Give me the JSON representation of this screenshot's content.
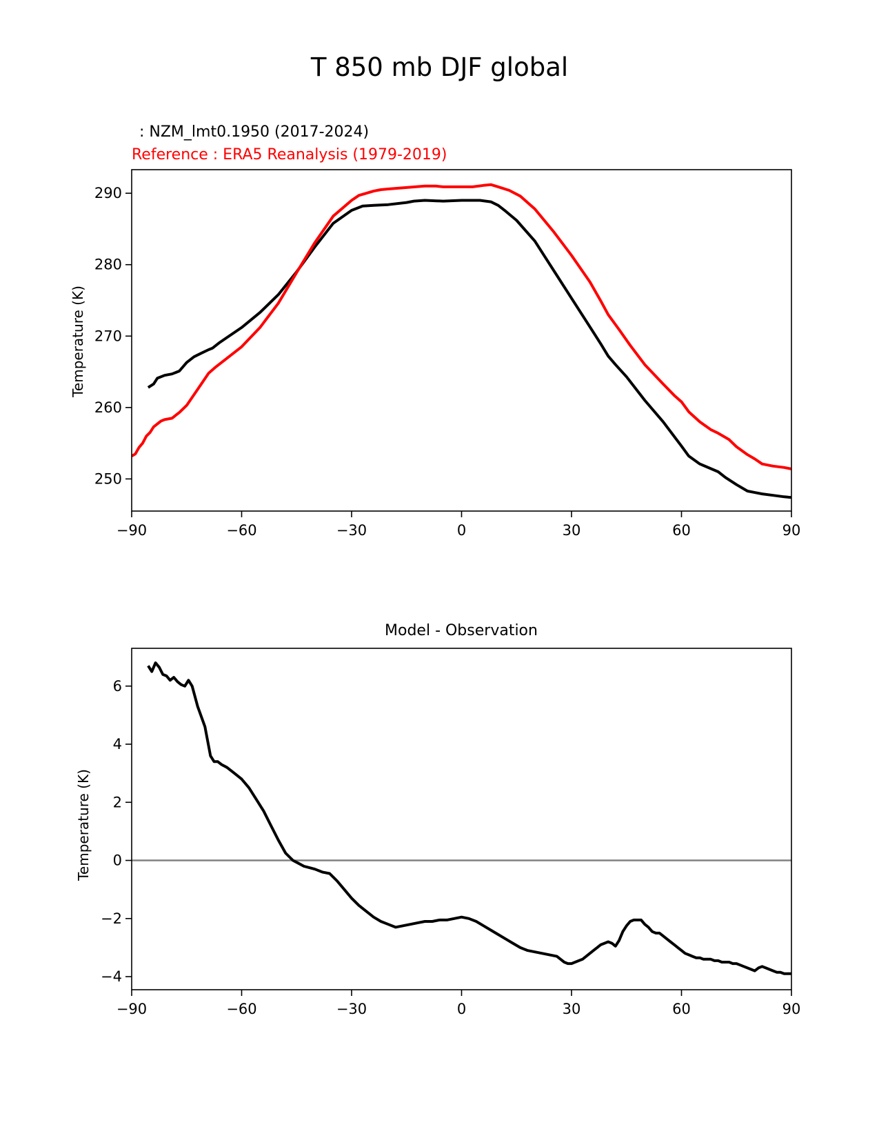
{
  "figure_title": "T 850 mb DJF global",
  "colors": {
    "model": "#000000",
    "reference": "#ff0000",
    "zero_line": "#808080",
    "axes": "#000000"
  },
  "chart_data": [
    {
      "type": "line",
      "model_label": " : NZM_lmt0.1950 (2017-2024)",
      "reference_label": "Reference : ERA5 Reanalysis (1979-2019)",
      "xlabel": "",
      "ylabel": "Temperature (K)",
      "xlim": [
        -90,
        90
      ],
      "ylim": [
        245.5,
        293.3
      ],
      "xticks": [
        -90,
        -60,
        -30,
        0,
        30,
        60,
        90
      ],
      "xtick_labels": [
        "−90",
        "−60",
        "−30",
        "0",
        "30",
        "60",
        "90"
      ],
      "yticks": [
        250,
        260,
        270,
        280,
        290
      ],
      "ytick_labels": [
        "250",
        "260",
        "270",
        "280",
        "290"
      ],
      "series": [
        {
          "name": "NZM_lmt0.1950 (2017-2024)",
          "color": "#000000",
          "x": [
            -85.5,
            -84,
            -83,
            -81,
            -79,
            -77,
            -75,
            -73,
            -71,
            -69,
            -68,
            -66,
            -64,
            -60,
            -55,
            -50,
            -45,
            -40,
            -35,
            -30,
            -27,
            -24,
            -20,
            -15,
            -13,
            -10,
            -5,
            0,
            5,
            8,
            10,
            12,
            15,
            20,
            25,
            30,
            35,
            38,
            40,
            42,
            45,
            50,
            55,
            60,
            62,
            65,
            70,
            72,
            75,
            78,
            80,
            82,
            85,
            88,
            90
          ],
          "y": [
            262.8,
            263.3,
            264.1,
            264.5,
            264.7,
            265.1,
            266.3,
            267.1,
            267.6,
            268.1,
            268.3,
            269.1,
            269.8,
            271.2,
            273.3,
            275.8,
            279.0,
            282.5,
            285.8,
            287.6,
            288.2,
            288.3,
            288.4,
            288.7,
            288.9,
            289.0,
            288.9,
            289.0,
            289.0,
            288.8,
            288.3,
            287.5,
            286.2,
            283.3,
            279.3,
            275.3,
            271.3,
            268.9,
            267.2,
            266.0,
            264.3,
            261.0,
            258.0,
            254.6,
            253.2,
            252.1,
            251.0,
            250.2,
            249.2,
            248.3,
            248.1,
            247.9,
            247.7,
            247.5,
            247.4
          ]
        },
        {
          "name": "ERA5 Reanalysis (1979-2019)",
          "color": "#ff0000",
          "x": [
            -90,
            -89,
            -88,
            -87,
            -86,
            -85,
            -84,
            -82,
            -81,
            -79,
            -78,
            -77,
            -76,
            -75,
            -73,
            -71,
            -69,
            -67,
            -66,
            -64,
            -62,
            -60,
            -55,
            -50,
            -45,
            -40,
            -35,
            -30,
            -28,
            -26,
            -24,
            -22,
            -20,
            -15,
            -10,
            -7,
            -5,
            0,
            3,
            6,
            8,
            10,
            13,
            16,
            20,
            25,
            30,
            35,
            38,
            40,
            43,
            46,
            50,
            55,
            58,
            60,
            62,
            65,
            68,
            70,
            73,
            75,
            78,
            80,
            82,
            85,
            88,
            90
          ],
          "y": [
            253.2,
            253.5,
            254.4,
            255.0,
            256.0,
            256.5,
            257.3,
            258.1,
            258.3,
            258.5,
            258.9,
            259.3,
            259.8,
            260.3,
            261.8,
            263.3,
            264.8,
            265.7,
            266.1,
            266.9,
            267.7,
            268.5,
            271.2,
            274.6,
            278.9,
            283.1,
            286.8,
            289.0,
            289.7,
            290.0,
            290.3,
            290.5,
            290.6,
            290.8,
            291.0,
            291.0,
            290.9,
            290.9,
            290.9,
            291.1,
            291.2,
            290.9,
            290.4,
            289.6,
            287.8,
            284.7,
            281.3,
            277.6,
            274.9,
            273.0,
            270.9,
            268.7,
            266.0,
            263.3,
            261.7,
            260.8,
            259.4,
            258.0,
            256.9,
            256.4,
            255.5,
            254.5,
            253.4,
            252.8,
            252.1,
            251.8,
            251.6,
            251.4
          ]
        }
      ]
    },
    {
      "type": "line",
      "title": "Model - Observation",
      "xlabel": "",
      "ylabel": "Temperature (K)",
      "xlim": [
        -90,
        90
      ],
      "ylim": [
        -4.45,
        7.3
      ],
      "xticks": [
        -90,
        -60,
        -30,
        0,
        30,
        60,
        90
      ],
      "xtick_labels": [
        "−90",
        "−60",
        "−30",
        "0",
        "30",
        "60",
        "90"
      ],
      "yticks": [
        -4,
        -2,
        0,
        2,
        4,
        6
      ],
      "ytick_labels": [
        "−4",
        "−2",
        "0",
        "2",
        "4",
        "6"
      ],
      "hline": 0,
      "series": [
        {
          "name": "Model - Observation",
          "color": "#000000",
          "x": [
            -85.5,
            -84.5,
            -83.5,
            -82.5,
            -81.5,
            -80.5,
            -79.5,
            -78.5,
            -77.5,
            -76.5,
            -75.5,
            -74.5,
            -73.5,
            -72,
            -70,
            -68.5,
            -67.5,
            -66.5,
            -65.5,
            -64,
            -62,
            -60,
            -58,
            -56,
            -54,
            -52,
            -50,
            -48,
            -46,
            -44.5,
            -43,
            -41.5,
            -40,
            -38,
            -36,
            -34,
            -32,
            -30,
            -28,
            -26,
            -24,
            -22,
            -20,
            -18,
            -16,
            -14,
            -12,
            -10,
            -8,
            -6,
            -4,
            -2,
            0,
            2,
            4,
            6,
            8,
            10,
            12,
            14,
            16,
            18,
            20,
            22,
            24,
            26,
            27,
            28,
            29,
            30,
            31,
            32,
            33,
            34,
            35,
            36,
            37,
            38,
            39,
            40,
            41,
            42,
            43,
            44,
            45,
            46,
            47,
            48,
            49,
            50,
            51,
            52,
            53,
            54,
            55,
            56,
            57,
            58,
            59,
            60,
            61,
            62,
            63,
            64,
            65,
            66,
            67,
            68,
            69,
            70,
            71,
            72,
            73,
            74,
            75,
            76,
            77,
            78,
            79,
            80,
            81,
            82,
            83,
            84,
            85,
            86,
            87,
            88,
            89,
            90
          ],
          "y": [
            6.7,
            6.5,
            6.8,
            6.65,
            6.4,
            6.35,
            6.2,
            6.3,
            6.15,
            6.05,
            6.0,
            6.2,
            6.0,
            5.3,
            4.6,
            3.6,
            3.4,
            3.4,
            3.3,
            3.2,
            3.0,
            2.8,
            2.5,
            2.1,
            1.7,
            1.2,
            0.7,
            0.25,
            0.0,
            -0.1,
            -0.2,
            -0.25,
            -0.3,
            -0.4,
            -0.45,
            -0.7,
            -1.0,
            -1.3,
            -1.55,
            -1.75,
            -1.95,
            -2.1,
            -2.2,
            -2.3,
            -2.25,
            -2.2,
            -2.15,
            -2.1,
            -2.1,
            -2.05,
            -2.05,
            -2.0,
            -1.95,
            -2.0,
            -2.1,
            -2.25,
            -2.4,
            -2.55,
            -2.7,
            -2.85,
            -3.0,
            -3.1,
            -3.15,
            -3.2,
            -3.25,
            -3.3,
            -3.4,
            -3.5,
            -3.55,
            -3.55,
            -3.5,
            -3.45,
            -3.4,
            -3.3,
            -3.2,
            -3.1,
            -3.0,
            -2.9,
            -2.85,
            -2.8,
            -2.85,
            -2.95,
            -2.75,
            -2.45,
            -2.25,
            -2.1,
            -2.05,
            -2.05,
            -2.05,
            -2.2,
            -2.3,
            -2.45,
            -2.5,
            -2.5,
            -2.6,
            -2.7,
            -2.8,
            -2.9,
            -3.0,
            -3.1,
            -3.2,
            -3.25,
            -3.3,
            -3.35,
            -3.35,
            -3.4,
            -3.4,
            -3.4,
            -3.45,
            -3.45,
            -3.5,
            -3.5,
            -3.5,
            -3.55,
            -3.55,
            -3.6,
            -3.65,
            -3.7,
            -3.75,
            -3.8,
            -3.7,
            -3.65,
            -3.7,
            -3.75,
            -3.8,
            -3.85,
            -3.85,
            -3.9,
            -3.9,
            -3.9
          ]
        }
      ]
    }
  ]
}
